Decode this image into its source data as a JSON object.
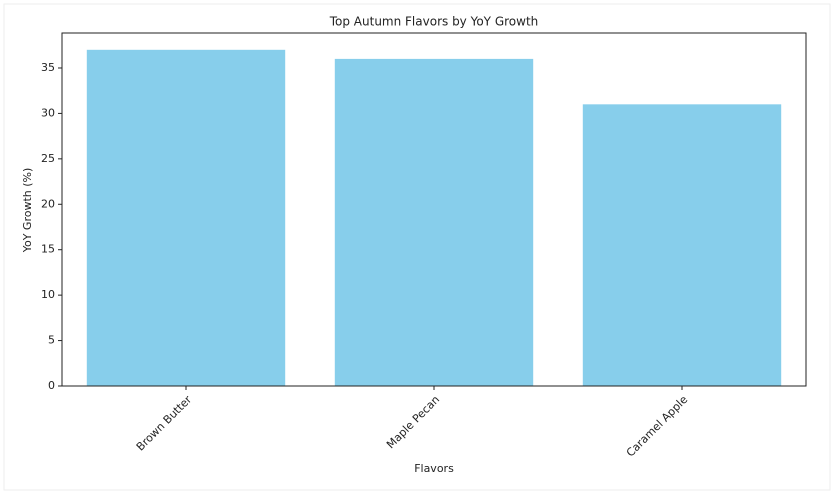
{
  "chart_data": {
    "type": "bar",
    "title": "Top Autumn Flavors by YoY Growth",
    "x_label": "Flavors",
    "y_label": "YoY Growth (%)",
    "categories": [
      "Brown Butter",
      "Maple Pecan",
      "Caramel Apple"
    ],
    "values": [
      37,
      36,
      31
    ],
    "color": "#87ceeb",
    "ylim": [
      0,
      38.85
    ],
    "yticks": [
      0,
      5,
      10,
      15,
      20,
      25,
      30,
      35
    ],
    "grid": false
  }
}
